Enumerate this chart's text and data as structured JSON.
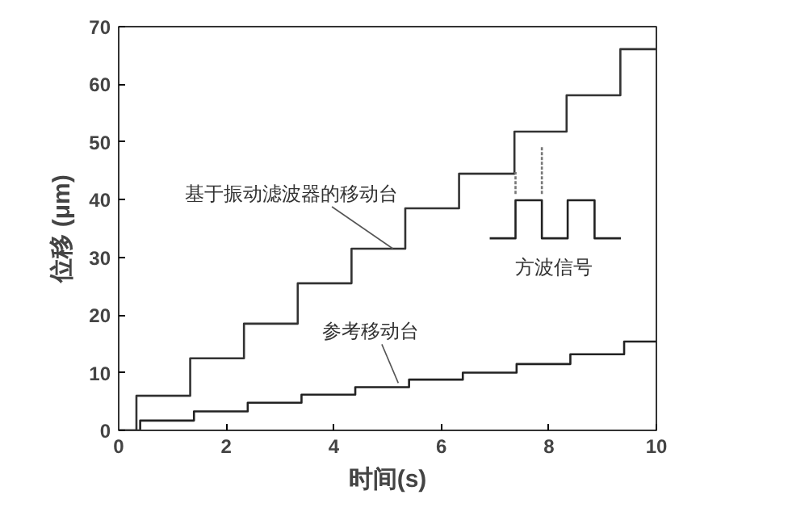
{
  "chart_data": {
    "type": "step",
    "xlabel": "时间(s)",
    "ylabel": "位移 (μm)",
    "xlim": [
      0,
      10
    ],
    "ylim": [
      0,
      70
    ],
    "xticks": [
      0,
      2,
      4,
      6,
      8,
      10
    ],
    "yticks": [
      0,
      10,
      20,
      30,
      40,
      50,
      60,
      70
    ],
    "grid": false,
    "series": [
      {
        "color": "#333333",
        "x": [
          0,
          0.33,
          1.33,
          2.33,
          3.33,
          4.33,
          5.33,
          6.33,
          7.36,
          8.33,
          9.33,
          10
        ],
        "values": [
          0,
          6,
          12.5,
          18.5,
          25.5,
          31.5,
          38.5,
          44.5,
          51.8,
          58.1,
          66.1,
          66.1
        ]
      },
      {
        "color": "#222222",
        "x": [
          0,
          0.4,
          1.4,
          2.4,
          3.4,
          4.4,
          5.4,
          6.4,
          7.4,
          8.4,
          9.4,
          10
        ],
        "values": [
          0,
          1.7,
          3.3,
          4.8,
          6.2,
          7.5,
          8.8,
          10,
          11.5,
          13.2,
          15.4,
          15.4
        ]
      },
      {
        "color": "#222222",
        "x": [
          6.9,
          7.38,
          7.87,
          8.35,
          8.85,
          9.34
        ],
        "values": [
          33.3,
          39.9,
          33.3,
          39.9,
          33.3,
          33.3
        ]
      },
      {
        "type": "line",
        "line_style": "dotted",
        "color": "#777777",
        "x": [
          7.38,
          7.38
        ],
        "values": [
          41,
          44.8
        ]
      },
      {
        "type": "line",
        "line_style": "dotted",
        "color": "#777777",
        "x": [
          7.87,
          7.87
        ],
        "values": [
          41,
          49.3
        ]
      }
    ],
    "annotations": [
      {
        "text": "基于振动滤波器的移动台",
        "x": 5.1,
        "y": 31.5
      },
      {
        "text": "参考移动台",
        "x": 5.2,
        "y": 8.2
      },
      {
        "text": "方波信号",
        "x": 8.1,
        "y": 33.3
      }
    ]
  }
}
